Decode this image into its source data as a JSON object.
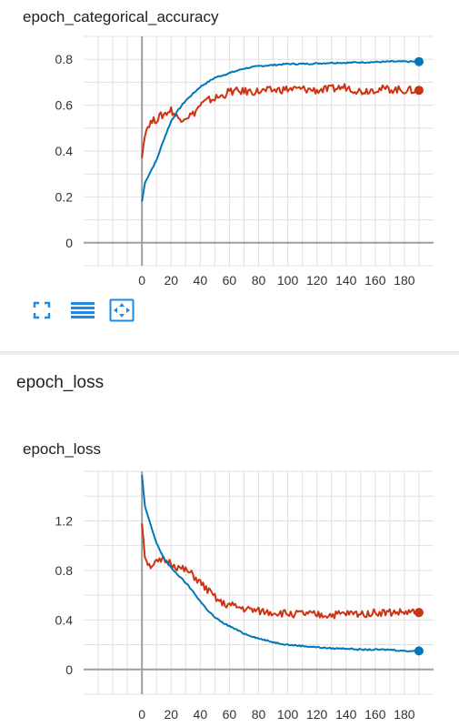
{
  "toolbar": {
    "fullscreen_icon": "expand-icon",
    "data_table_icon": "list-icon",
    "fit_domain_icon": "fit-domain-icon"
  },
  "section": {
    "title": "epoch_loss"
  },
  "colors": {
    "train": "#0077bb",
    "validation": "#cc3311",
    "axis": "#9e9e9e",
    "grid": "#e0e0e0"
  },
  "chart_data": [
    {
      "type": "line",
      "title": "epoch_categorical_accuracy",
      "x_ticks": [
        0,
        20,
        40,
        60,
        80,
        100,
        120,
        140,
        160,
        180
      ],
      "y_ticks": [
        0,
        0.2,
        0.4,
        0.6,
        0.8
      ],
      "y_tick_labels": [
        "0",
        "0.2",
        "0.4",
        "0.6",
        "0.8"
      ],
      "xlim": [
        -40,
        200
      ],
      "ylim": [
        -0.1,
        0.9
      ],
      "grid": true,
      "series": [
        {
          "color": "#0077bb",
          "x": [
            0,
            2,
            5,
            10,
            15,
            20,
            25,
            30,
            35,
            40,
            45,
            50,
            55,
            60,
            70,
            80,
            90,
            100,
            110,
            120,
            130,
            140,
            150,
            160,
            170,
            180,
            190
          ],
          "y": [
            0.18,
            0.26,
            0.3,
            0.36,
            0.45,
            0.53,
            0.58,
            0.62,
            0.65,
            0.68,
            0.7,
            0.72,
            0.73,
            0.74,
            0.76,
            0.77,
            0.775,
            0.78,
            0.78,
            0.782,
            0.785,
            0.785,
            0.787,
            0.788,
            0.79,
            0.79,
            0.79
          ]
        },
        {
          "color": "#cc3311",
          "x": [
            0,
            2,
            5,
            10,
            15,
            20,
            25,
            30,
            35,
            40,
            45,
            50,
            55,
            60,
            70,
            80,
            90,
            100,
            110,
            120,
            130,
            140,
            150,
            160,
            170,
            180,
            190
          ],
          "y": [
            0.37,
            0.48,
            0.52,
            0.54,
            0.56,
            0.58,
            0.54,
            0.55,
            0.56,
            0.6,
            0.62,
            0.63,
            0.64,
            0.66,
            0.66,
            0.66,
            0.665,
            0.67,
            0.67,
            0.665,
            0.67,
            0.68,
            0.66,
            0.67,
            0.67,
            0.665,
            0.665
          ]
        }
      ]
    },
    {
      "type": "line",
      "title": "epoch_loss",
      "x_ticks": [
        0,
        20,
        40,
        60,
        80,
        100,
        120,
        140,
        160,
        180
      ],
      "y_ticks": [
        0,
        0.4,
        0.8,
        1.2
      ],
      "y_tick_labels": [
        "0",
        "0.4",
        "0.8",
        "1.2"
      ],
      "xlim": [
        -40,
        200
      ],
      "ylim": [
        -0.2,
        1.6
      ],
      "grid": true,
      "series": [
        {
          "color": "#0077bb",
          "x": [
            0,
            2,
            5,
            10,
            15,
            20,
            25,
            30,
            35,
            40,
            45,
            50,
            55,
            60,
            70,
            80,
            90,
            100,
            110,
            120,
            130,
            140,
            150,
            160,
            170,
            180,
            190
          ],
          "y": [
            1.57,
            1.32,
            1.2,
            1.02,
            0.9,
            0.82,
            0.76,
            0.7,
            0.63,
            0.55,
            0.48,
            0.42,
            0.38,
            0.35,
            0.29,
            0.25,
            0.22,
            0.2,
            0.19,
            0.18,
            0.17,
            0.17,
            0.16,
            0.16,
            0.16,
            0.15,
            0.15
          ]
        },
        {
          "color": "#cc3311",
          "x": [
            0,
            2,
            5,
            10,
            15,
            20,
            25,
            30,
            35,
            40,
            45,
            50,
            55,
            60,
            70,
            80,
            90,
            100,
            110,
            120,
            130,
            140,
            150,
            160,
            170,
            180,
            190
          ],
          "y": [
            1.18,
            0.92,
            0.84,
            0.86,
            0.88,
            0.86,
            0.82,
            0.8,
            0.76,
            0.7,
            0.64,
            0.58,
            0.53,
            0.52,
            0.49,
            0.47,
            0.46,
            0.45,
            0.45,
            0.44,
            0.44,
            0.45,
            0.45,
            0.46,
            0.46,
            0.46,
            0.46
          ]
        }
      ]
    }
  ]
}
